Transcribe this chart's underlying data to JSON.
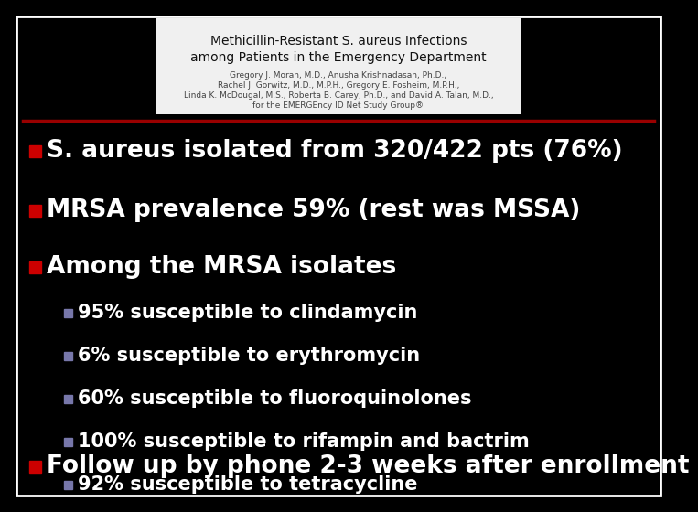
{
  "background_color": "#000000",
  "border_color": "#ffffff",
  "red_line_color": "#990000",
  "bullet_red_color": "#cc0000",
  "bullet_blue_color": "#7777aa",
  "text_color": "#ffffff",
  "header_box_bg": "#f0f0f0",
  "header_title1": "Methicillin-Resistant S. aureus Infections",
  "header_title2": "among Patients in the Emergency Department",
  "header_authors_line1": "Gregory J. Moran, M.D., Anusha Krishnadasan, Ph.D.,",
  "header_authors_line2": "Rachel J. Gorwitz, M.D., M.P.H., Gregory E. Fosheim, M.P.H.,",
  "header_authors_line3": "Linda K. McDougal, M.S., Roberta B. Carey, Ph.D., and David A. Talan, M.D.,",
  "header_authors_line4": "for the EMERGEncy ID Net Study Group®",
  "main_bullets": [
    "S. aureus isolated from 320/422 pts (76%)",
    "MRSA prevalence 59% (rest was MSSA)",
    "Among the MRSA isolates"
  ],
  "sub_bullets": [
    "95% susceptible to clindamycin",
    "6% susceptible to erythromycin",
    "60% susceptible to fluoroquinolones",
    "100% susceptible to rifampin and bactrim",
    "92% susceptible to tetracycline"
  ],
  "last_bullet": "Follow up by phone 2-3 weeks after enrollment",
  "main_fontsize": 19,
  "sub_fontsize": 15,
  "header_title_fontsize": 10,
  "header_author_fontsize": 6.5
}
